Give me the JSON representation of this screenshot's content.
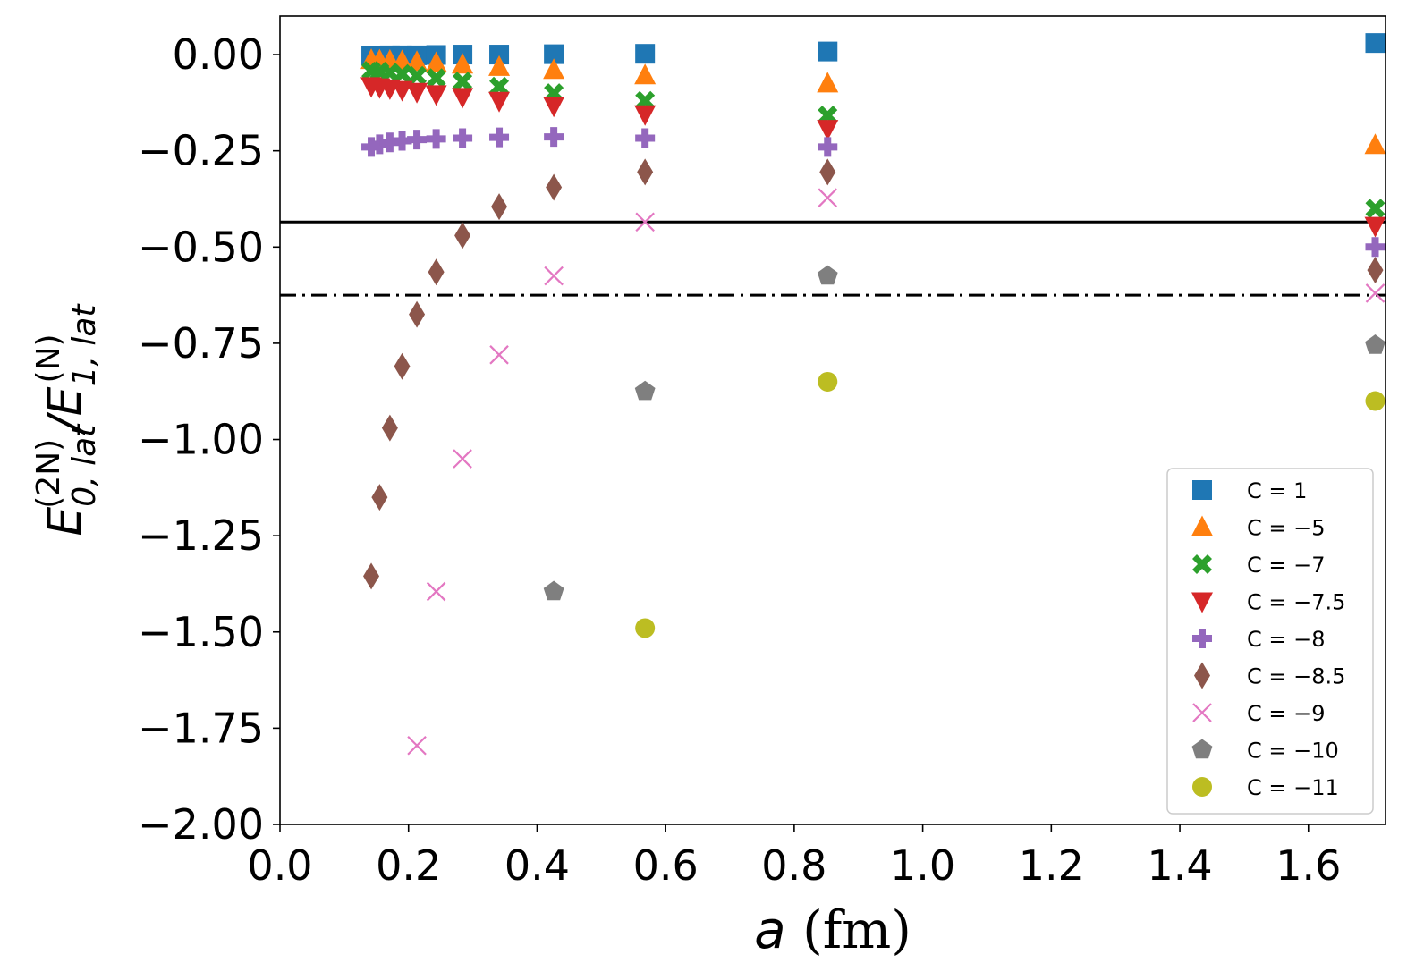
{
  "chart_data": {
    "type": "scatter",
    "title": "",
    "xlabel": "a (fm)",
    "ylabel": "E_{0,lat}^{(2N)}/E_{1,lat}^{(N)}",
    "xlim": [
      0.0,
      1.72
    ],
    "ylim": [
      -2.0,
      0.1
    ],
    "xticks": [
      "0.0",
      "0.2",
      "0.4",
      "0.6",
      "0.8",
      "1.0",
      "1.2",
      "1.4",
      "1.6"
    ],
    "yticks": [
      "0.00",
      "−0.25",
      "−0.50",
      "−0.75",
      "−1.00",
      "−1.25",
      "−1.50",
      "−1.75",
      "−2.00"
    ],
    "grid": false,
    "legend_position": "lower-right",
    "reference_lines": [
      {
        "style": "solid",
        "y": -0.435
      },
      {
        "style": "dashdot",
        "y": -0.625
      }
    ],
    "series": [
      {
        "name": "C = 1",
        "marker": "square",
        "color": "#1f77b4",
        "x": [
          0.142,
          0.155,
          0.171,
          0.19,
          0.213,
          0.243,
          0.284,
          0.341,
          0.426,
          0.568,
          0.852,
          1.704
        ],
        "y": [
          -0.003,
          -0.003,
          -0.002,
          -0.002,
          -0.002,
          -0.001,
          0.0,
          0.0,
          0.001,
          0.002,
          0.008,
          0.03
        ]
      },
      {
        "name": "C = −5",
        "marker": "triangle-up",
        "color": "#ff7f0e",
        "x": [
          0.142,
          0.155,
          0.171,
          0.19,
          0.213,
          0.243,
          0.284,
          0.341,
          0.426,
          0.568,
          0.852,
          1.704
        ],
        "y": [
          -0.014,
          -0.015,
          -0.016,
          -0.017,
          -0.019,
          -0.022,
          -0.026,
          -0.032,
          -0.04,
          -0.054,
          -0.075,
          -0.235
        ]
      },
      {
        "name": "C = −7",
        "marker": "x-filled",
        "color": "#2ca02c",
        "x": [
          0.142,
          0.155,
          0.171,
          0.19,
          0.213,
          0.243,
          0.284,
          0.341,
          0.426,
          0.568,
          0.852,
          1.704
        ],
        "y": [
          -0.042,
          -0.044,
          -0.047,
          -0.05,
          -0.055,
          -0.061,
          -0.07,
          -0.083,
          -0.1,
          -0.12,
          -0.158,
          -0.4
        ]
      },
      {
        "name": "C = −7.5",
        "marker": "triangle-down",
        "color": "#d62728",
        "x": [
          0.142,
          0.155,
          0.171,
          0.19,
          0.213,
          0.243,
          0.284,
          0.341,
          0.426,
          0.568,
          0.852,
          1.704
        ],
        "y": [
          -0.082,
          -0.085,
          -0.088,
          -0.092,
          -0.097,
          -0.103,
          -0.11,
          -0.12,
          -0.133,
          -0.155,
          -0.193,
          -0.445
        ]
      },
      {
        "name": "C = −8",
        "marker": "plus-filled",
        "color": "#9467bd",
        "x": [
          0.142,
          0.155,
          0.171,
          0.19,
          0.213,
          0.243,
          0.284,
          0.341,
          0.426,
          0.568,
          0.852,
          1.704
        ],
        "y": [
          -0.24,
          -0.233,
          -0.228,
          -0.224,
          -0.221,
          -0.219,
          -0.217,
          -0.215,
          -0.214,
          -0.217,
          -0.24,
          -0.5
        ]
      },
      {
        "name": "C = −8.5",
        "marker": "thin-diamond",
        "color": "#8c564b",
        "x": [
          0.142,
          0.155,
          0.171,
          0.19,
          0.213,
          0.243,
          0.284,
          0.341,
          0.426,
          0.568,
          0.852,
          1.704
        ],
        "y": [
          -1.355,
          -1.15,
          -0.97,
          -0.81,
          -0.675,
          -0.565,
          -0.47,
          -0.395,
          -0.345,
          -0.305,
          -0.305,
          -0.56
        ]
      },
      {
        "name": "C = −9",
        "marker": "x",
        "color": "#e377c2",
        "x": [
          0.213,
          0.243,
          0.284,
          0.341,
          0.426,
          0.568,
          0.852,
          1.704
        ],
        "y": [
          -1.795,
          -1.395,
          -1.05,
          -0.78,
          -0.575,
          -0.435,
          -0.372,
          -0.62
        ]
      },
      {
        "name": "C = −10",
        "marker": "pentagon",
        "color": "#7f7f7f",
        "x": [
          0.426,
          0.568,
          0.852,
          1.704
        ],
        "y": [
          -1.395,
          -0.875,
          -0.575,
          -0.755
        ]
      },
      {
        "name": "C = −11",
        "marker": "circle",
        "color": "#bcbd22",
        "x": [
          0.568,
          0.852,
          1.704
        ],
        "y": [
          -1.49,
          -0.85,
          -0.9
        ]
      }
    ]
  }
}
